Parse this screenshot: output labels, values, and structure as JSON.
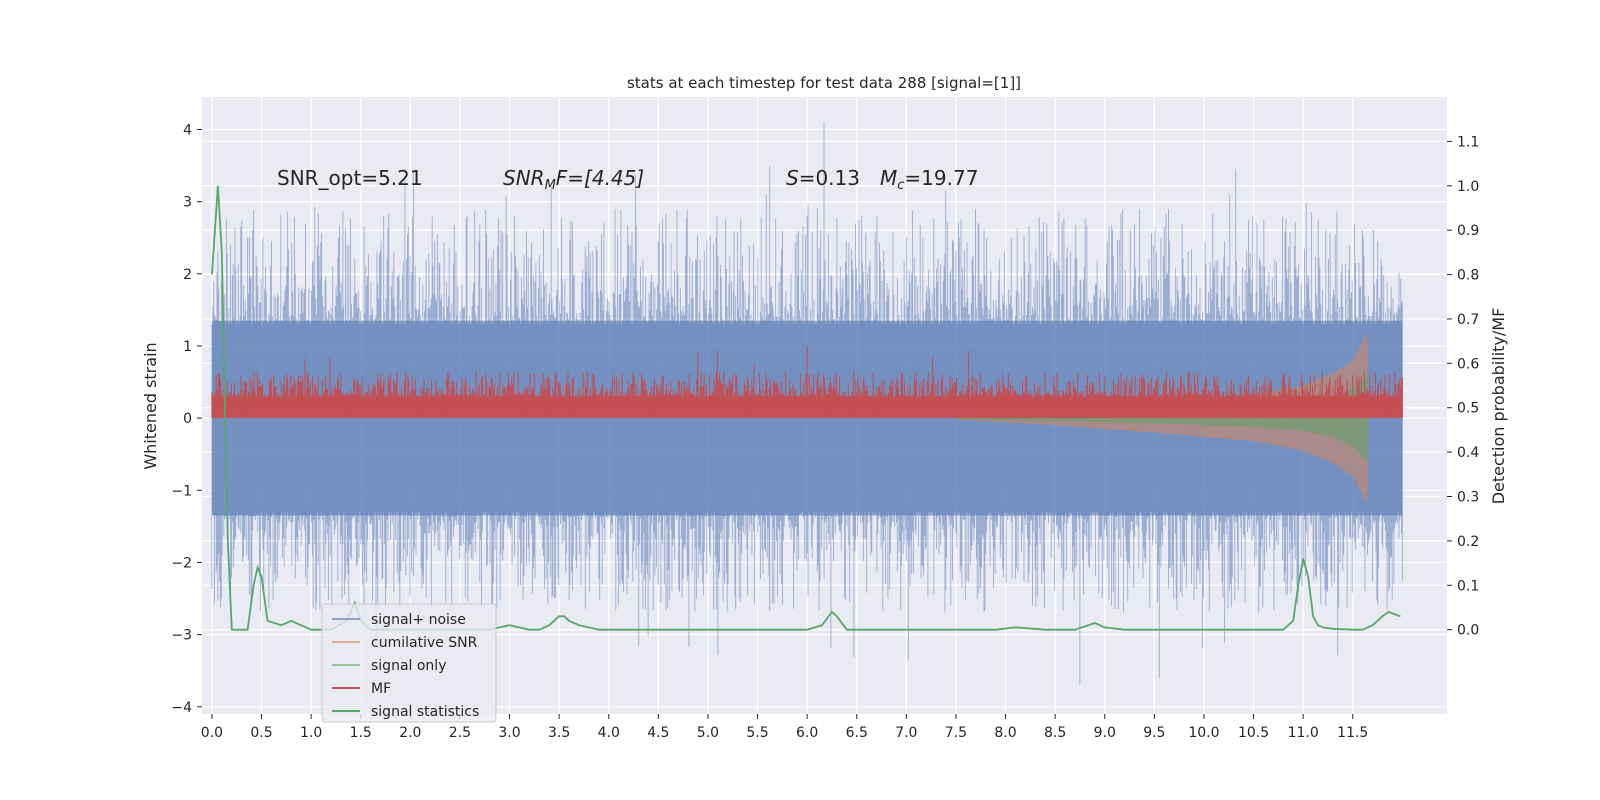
{
  "chart_data": {
    "type": "line",
    "title": "stats at each timestep for test data 288 [signal=[1]]",
    "xlabel": "",
    "ylabel": "Whitened strain",
    "ylabel_right": "Detection probability/MF",
    "xlim": [
      -0.1,
      12.45
    ],
    "ylim": [
      -4.1,
      4.45
    ],
    "ylim_right": [
      -0.19,
      1.2
    ],
    "x_ticks": [
      "0.0",
      "0.5",
      "1.0",
      "1.5",
      "2.0",
      "2.5",
      "3.0",
      "3.5",
      "4.0",
      "4.5",
      "5.0",
      "5.5",
      "6.0",
      "6.5",
      "7.0",
      "7.5",
      "8.0",
      "8.5",
      "9.0",
      "9.5",
      "10.0",
      "10.5",
      "11.0",
      "11.5"
    ],
    "y_ticks": [
      "4",
      "3",
      "2",
      "1",
      "0",
      "−1",
      "−2",
      "−3",
      "−4"
    ],
    "y_ticks_right": [
      "1.1",
      "1.0",
      "0.9",
      "0.8",
      "0.7",
      "0.6",
      "0.5",
      "0.4",
      "0.3",
      "0.2",
      "0.1",
      "0.0"
    ],
    "grid": true,
    "legend_position": "lower-left",
    "annotations": {
      "snr_opt": "SNR_opt=5.21",
      "snr_mf_sym": "SNR",
      "snr_mf_sub": "M",
      "snr_mf_rest": "F=[4.45]",
      "s_sym": "S",
      "s_rest": "=0.13",
      "mc_sym": "M",
      "mc_sub": "c",
      "mc_rest": "=19.77"
    },
    "series": [
      {
        "name": "signal+ noise",
        "color": "#4c72b0",
        "range": [
          -2.0,
          2.0
        ],
        "peaks_max": 4.1,
        "peaks_min": -3.7,
        "x_end": 12.0
      },
      {
        "name": "cumilative SNR",
        "color": "#dd8452",
        "envelope_x": [
          7.5,
          8.5,
          9.5,
          10.5,
          11.0,
          11.3,
          11.5,
          11.65
        ],
        "envelope_y": [
          0.02,
          0.1,
          0.2,
          0.32,
          0.45,
          0.62,
          0.8,
          1.2
        ]
      },
      {
        "name": "signal only",
        "color": "#55a868",
        "envelope_x": [
          7.5,
          8.5,
          9.5,
          10.5,
          11.0,
          11.3,
          11.5,
          11.65
        ],
        "envelope_y": [
          0.02,
          0.04,
          0.07,
          0.12,
          0.18,
          0.26,
          0.4,
          0.6
        ]
      },
      {
        "name": "MF",
        "color": "#c44e52",
        "range": [
          0.0,
          0.55
        ],
        "peaks_max": 1.0,
        "x_end": 12.0
      },
      {
        "name": "signal statistics",
        "color": "#55a868",
        "x": [
          0.0,
          0.06,
          0.1,
          0.16,
          0.2,
          0.3,
          0.36,
          0.42,
          0.46,
          0.5,
          0.56,
          0.7,
          0.8,
          1.0,
          1.2,
          1.36,
          1.44,
          1.5,
          1.6,
          1.8,
          2.0,
          2.2,
          2.4,
          2.6,
          2.8,
          2.9,
          3.0,
          3.2,
          3.3,
          3.4,
          3.5,
          3.55,
          3.6,
          3.7,
          3.9,
          4.1,
          4.4,
          4.6,
          4.8,
          5.0,
          5.2,
          5.4,
          5.6,
          5.8,
          6.0,
          6.15,
          6.25,
          6.3,
          6.4,
          6.5,
          6.7,
          7.0,
          7.3,
          7.6,
          7.9,
          8.1,
          8.4,
          8.7,
          8.9,
          9.0,
          9.2,
          9.6,
          10.0,
          10.4,
          10.8,
          10.9,
          10.95,
          11.0,
          11.05,
          11.1,
          11.15,
          11.2,
          11.3,
          11.5,
          11.6,
          11.7,
          11.8,
          11.86,
          11.92,
          11.98
        ],
        "y": [
          0.8,
          1.0,
          0.85,
          0.2,
          0.0,
          0.0,
          0.0,
          0.1,
          0.14,
          0.12,
          0.02,
          0.01,
          0.02,
          0.0,
          0.0,
          0.02,
          0.06,
          0.02,
          0.0,
          0.0,
          0.0,
          0.0,
          0.0,
          0.0,
          0.0,
          0.005,
          0.01,
          0.0,
          0.0,
          0.01,
          0.03,
          0.03,
          0.02,
          0.01,
          0.0,
          0.0,
          0.0,
          0.0,
          0.0,
          0.0,
          0.0,
          0.0,
          0.0,
          0.0,
          0.0,
          0.01,
          0.04,
          0.03,
          0.0,
          0.0,
          0.0,
          0.0,
          0.0,
          0.0,
          0.0,
          0.005,
          0.0,
          0.0,
          0.015,
          0.005,
          0.0,
          0.0,
          0.0,
          0.0,
          0.0,
          0.02,
          0.1,
          0.16,
          0.12,
          0.03,
          0.01,
          0.005,
          0.002,
          0.0,
          0.0,
          0.01,
          0.03,
          0.04,
          0.035,
          0.03
        ]
      }
    ]
  }
}
